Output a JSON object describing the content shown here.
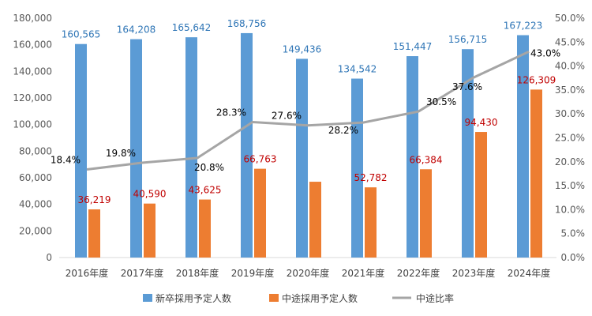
{
  "chart_data": {
    "type": "bar",
    "categories": [
      "2016年度",
      "2017年度",
      "2018年度",
      "2019年度",
      "2020年度",
      "2021年度",
      "2022年度",
      "2023年度",
      "2024年度"
    ],
    "series": [
      {
        "name": "新卒採用予定人数",
        "axis": "left",
        "kind": "bar",
        "color": "#5b9bd5",
        "values": [
          160565,
          164208,
          165642,
          168756,
          149436,
          134542,
          151447,
          156715,
          167223
        ],
        "labels": [
          "160,565",
          "164,208",
          "165,642",
          "168,756",
          "149,436",
          "134,542",
          "151,447",
          "156,715",
          "167,223"
        ]
      },
      {
        "name": "中途採用予定人数",
        "axis": "left",
        "kind": "bar",
        "color": "#ed7d31",
        "values": [
          36219,
          40590,
          43625,
          66763,
          57000,
          52782,
          66384,
          94430,
          126309
        ],
        "labels": [
          "36,219",
          "40,590",
          "43,625",
          "66,763",
          "",
          "52,782",
          "66,384",
          "94,430",
          "126,309"
        ]
      },
      {
        "name": "中途比率",
        "axis": "right",
        "kind": "line",
        "color": "#a5a5a5",
        "values": [
          18.4,
          19.8,
          20.8,
          28.3,
          27.6,
          28.2,
          30.5,
          37.6,
          43.0
        ],
        "labels": [
          "18.4%",
          "19.8%",
          "20.8%",
          "28.3%",
          "27.6%",
          "28.2%",
          "30.5%",
          "37.6%",
          "43.0%"
        ]
      }
    ],
    "y_left": {
      "range": [
        0,
        180000
      ],
      "ticks": [
        "0",
        "20,000",
        "40,000",
        "60,000",
        "80,000",
        "100,000",
        "120,000",
        "140,000",
        "160,000",
        "180,000"
      ]
    },
    "y_right": {
      "range": [
        0,
        50
      ],
      "ticks": [
        "0.0%",
        "5.0%",
        "10.0%",
        "15.0%",
        "20.0%",
        "25.0%",
        "30.0%",
        "35.0%",
        "40.0%",
        "45.0%",
        "50.0%"
      ]
    },
    "grid": false,
    "legend": "bottom"
  }
}
